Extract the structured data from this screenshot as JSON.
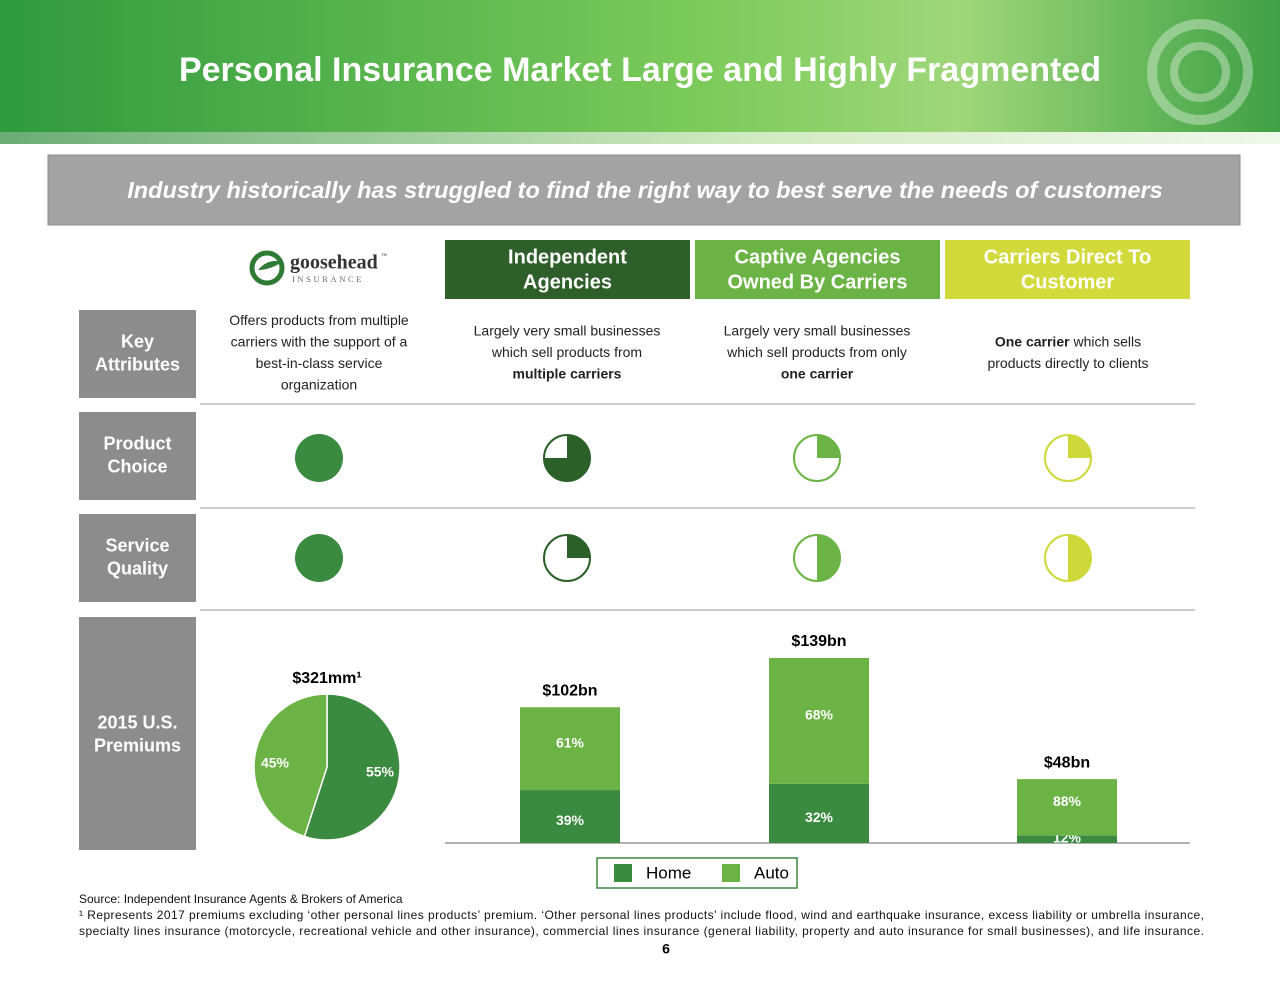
{
  "title": "Personal Insurance Market Large and Highly Fragmented",
  "banner": "Industry historically has struggled to find the right way to best serve the needs of customers",
  "logo": {
    "name": "goosehead",
    "tm": "™",
    "tagline": "INSURANCE"
  },
  "columns": [
    {
      "label": [
        "Independent",
        "Agencies"
      ],
      "color": "#2e5e29"
    },
    {
      "label": [
        "Captive Agencies",
        "Owned By Carriers"
      ],
      "color": "#6bb344"
    },
    {
      "label": [
        "Carriers Direct To",
        "Customer"
      ],
      "color": "#d2da3b"
    }
  ],
  "rows": {
    "key_attributes": {
      "label": [
        "Key",
        "Attributes"
      ],
      "cells": [
        [
          [
            {
              "t": "Offers products from multiple"
            }
          ],
          [
            {
              "t": "carriers with the support of a"
            }
          ],
          [
            {
              "t": "best-in-class service"
            }
          ],
          [
            {
              "t": "organization"
            }
          ]
        ],
        [
          [
            {
              "t": "Largely very small businesses"
            }
          ],
          [
            {
              "t": "which sell products from"
            }
          ],
          [
            {
              "t": "multiple carriers",
              "b": true
            }
          ]
        ],
        [
          [
            {
              "t": "Largely very small businesses"
            }
          ],
          [
            {
              "t": "which sell products from only"
            }
          ],
          [
            {
              "t": "one carrier",
              "b": true
            }
          ]
        ],
        [
          [
            {
              "t": "One carrier",
              "b": true
            },
            {
              "t": " which sells"
            }
          ],
          [
            {
              "t": "products directly to clients"
            }
          ]
        ]
      ]
    },
    "product_choice": {
      "label": [
        "Product",
        "Choice"
      ],
      "values": [
        100,
        75,
        25,
        25
      ]
    },
    "service_quality": {
      "label": [
        "Service",
        "Quality"
      ],
      "values": [
        100,
        25,
        50,
        50
      ]
    },
    "premiums": {
      "label": [
        "2015 U.S.",
        "Premiums"
      ]
    }
  },
  "ball_colors": [
    "#3a8a3f",
    "#2b6128",
    "#6bb344",
    "#cfd83a"
  ],
  "pie": {
    "title": "$321mm¹",
    "total": 321,
    "values": [
      55,
      45
    ],
    "value_labels": [
      "55%",
      "45%"
    ],
    "colors": [
      "#3a8a3f",
      "#6bb344"
    ]
  },
  "bars": {
    "values": [
      102,
      139,
      48
    ],
    "value_labels": [
      "$102bn",
      "$139bn",
      "$48bn"
    ],
    "series": [
      {
        "name": "Home",
        "color": "#3a8a3f",
        "values": [
          39,
          32,
          12
        ],
        "value_labels": [
          "39%",
          "32%",
          "12%"
        ]
      },
      {
        "name": "Auto",
        "color": "#6bb344",
        "values": [
          61,
          68,
          88
        ],
        "value_labels": [
          "61%",
          "68%",
          "88%"
        ]
      }
    ]
  },
  "footnotes": [
    "Source: Independent Insurance Agents & Brokers of America",
    "¹ Represents 2017 premiums excluding ‘other personal lines products’ premium. ‘Other personal lines products’ include flood, wind and earthquake insurance, excess liability or umbrella insurance,",
    "specialty lines insurance (motorcycle, recreational vehicle and other insurance), commercial lines insurance (general liability, property and auto insurance for small businesses), and life insurance."
  ],
  "page": 6
}
